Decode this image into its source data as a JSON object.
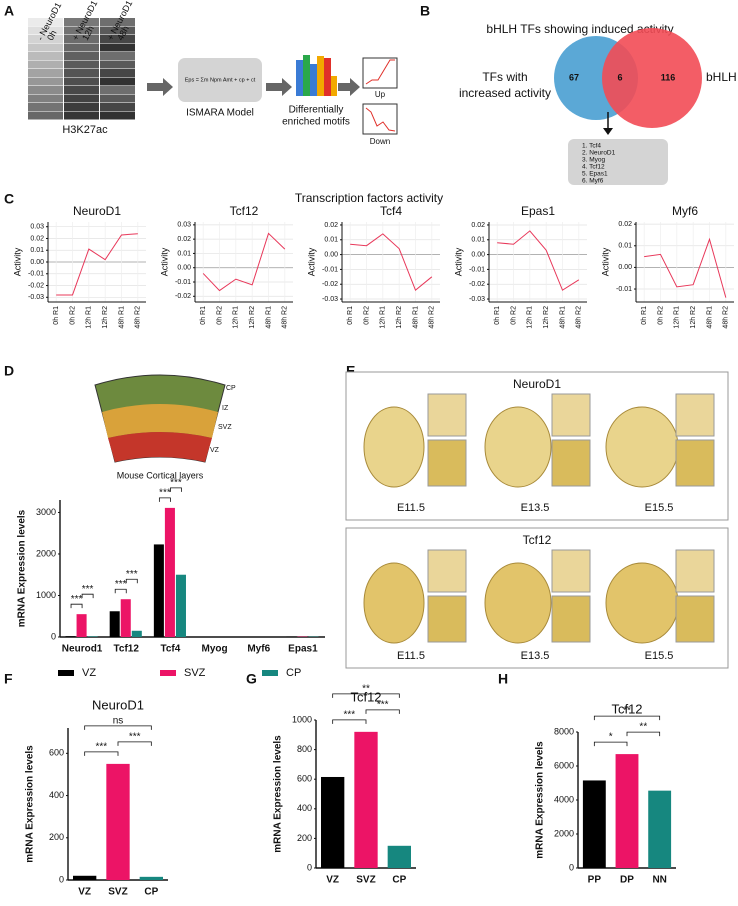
{
  "panel_labels": [
    "A",
    "B",
    "C",
    "D",
    "E",
    "F",
    "G",
    "H"
  ],
  "panel_a": {
    "columns": [
      [
        "- NeuroD1",
        "0h"
      ],
      [
        "+ NeuroD1",
        "12h"
      ],
      [
        "+ NeuroD1",
        "48h"
      ]
    ],
    "histone_mark": "H3K27ac",
    "formula": "Eps = Σm Npm Amt + cp + ct",
    "model": "ISMARA Model",
    "motifs": [
      "Differentially",
      "enriched motifs"
    ],
    "up": "Up",
    "down": "Down"
  },
  "panel_b": {
    "title": "bHLH TFs showing induced activity",
    "left_set": [
      "TFs with",
      "increased activity"
    ],
    "right_set": "bHLH TFs",
    "left_only": "67",
    "overlap": "6",
    "right_only": "116",
    "list": [
      "1. Tcf4",
      "2. NeuroD1",
      "3. Myog",
      "4. Tcf12",
      "5. Epas1",
      "6. Myf6"
    ]
  },
  "panel_c": {
    "title": "Transcription factors activity"
  },
  "panel_d": {
    "layers": [
      "CP",
      "IZ",
      "SVZ",
      "VZ"
    ],
    "caption": "Mouse Cortical layers"
  },
  "panel_e": {
    "groups": [
      {
        "title": "NeuroD1",
        "stages": [
          "E11.5",
          "E13.5",
          "E15.5"
        ]
      },
      {
        "title": "Tcf12",
        "stages": [
          "E11.5",
          "E13.5",
          "E15.5"
        ]
      }
    ]
  },
  "chart_data": [
    {
      "type": "line",
      "title": "NeuroD1",
      "y_label": "Activity",
      "color": "#e8385a",
      "grid": true,
      "categories": [
        "0h R1",
        "0h R2",
        "12h R1",
        "12h R2",
        "48h R1",
        "48h R2"
      ],
      "values": [
        -0.028,
        -0.028,
        0.011,
        0.002,
        0.023,
        0.024
      ],
      "ylim": [
        -0.034,
        0.034
      ],
      "yticks": [
        0.03,
        0.02,
        0.01,
        {
          "value": 0,
          "label": "0.00"
        },
        -0.01,
        -0.02,
        -0.03
      ]
    },
    {
      "type": "line",
      "title": "Tcf12",
      "y_label": "Activity",
      "color": "#e8385a",
      "grid": true,
      "categories": [
        "0h R1",
        "0h R2",
        "12h R1",
        "12h R2",
        "48h R1",
        "48h R2"
      ],
      "values": [
        -0.004,
        -0.016,
        -0.008,
        -0.012,
        0.024,
        0.013
      ],
      "ylim": [
        -0.024,
        0.032
      ],
      "yticks": [
        0.03,
        0.02,
        0.01,
        {
          "value": 0,
          "label": "0.00"
        },
        -0.01,
        -0.02
      ]
    },
    {
      "type": "line",
      "title": "Tcf4",
      "y_label": "Activity",
      "color": "#e8385a",
      "grid": true,
      "categories": [
        "0h R1",
        "0h R2",
        "12h R1",
        "12h R2",
        "48h R1",
        "48h R2"
      ],
      "values": [
        0.007,
        0.006,
        0.014,
        0.004,
        -0.024,
        -0.015
      ],
      "ylim": [
        -0.032,
        0.022
      ],
      "yticks": [
        0.02,
        0.01,
        {
          "value": 0,
          "label": "0.00"
        },
        -0.01,
        -0.02,
        -0.03
      ]
    },
    {
      "type": "line",
      "title": "Epas1",
      "y_label": "Activity",
      "color": "#e8385a",
      "grid": true,
      "categories": [
        "0h R1",
        "0h R2",
        "12h R1",
        "12h R2",
        "48h R1",
        "48h R2"
      ],
      "values": [
        0.008,
        0.007,
        0.016,
        0.003,
        -0.024,
        -0.017
      ],
      "ylim": [
        -0.032,
        0.022
      ],
      "yticks": [
        0.02,
        0.01,
        {
          "value": 0,
          "label": "0.00"
        },
        -0.01,
        -0.02,
        -0.03
      ]
    },
    {
      "type": "line",
      "title": "Myf6",
      "y_label": "Activity",
      "color": "#e8385a",
      "grid": true,
      "categories": [
        "0h R1",
        "0h R2",
        "12h R1",
        "12h R2",
        "48h R1",
        "48h R2"
      ],
      "values": [
        0.005,
        0.006,
        -0.009,
        -0.008,
        0.013,
        -0.014
      ],
      "ylim": [
        -0.016,
        0.021
      ],
      "yticks": [
        0.02,
        0.01,
        {
          "value": 0,
          "label": "0.00"
        },
        -0.01
      ]
    },
    {
      "type": "bar",
      "y_label": "mRNA Expression levels",
      "categories": [
        "Neurod1",
        "Tcf12",
        "Tcf4",
        "Myog",
        "Myf6",
        "Epas1"
      ],
      "series": [
        {
          "name": "VZ",
          "color": "#000000",
          "values": [
            20,
            620,
            2230,
            0,
            0,
            10
          ]
        },
        {
          "name": "SVZ",
          "color": "#ec1466",
          "values": [
            550,
            910,
            3110,
            0,
            0,
            10
          ]
        },
        {
          "name": "CP",
          "color": "#16877f",
          "values": [
            15,
            150,
            1500,
            0,
            0,
            10
          ]
        }
      ],
      "ylim": [
        0,
        3300
      ],
      "yticks": [
        0,
        1000,
        2000,
        3000
      ],
      "comparisons": [
        {
          "label": "***",
          "category": "Neurod1",
          "groups": [
            "VZ",
            "SVZ"
          ]
        },
        {
          "label": "***",
          "category": "Neurod1",
          "groups": [
            "SVZ",
            "CP"
          ]
        },
        {
          "label": "***",
          "category": "Tcf12",
          "groups": [
            "VZ",
            "SVZ"
          ]
        },
        {
          "label": "***",
          "category": "Tcf12",
          "groups": [
            "SVZ",
            "CP"
          ]
        },
        {
          "label": "***",
          "category": "Tcf4",
          "groups": [
            "VZ",
            "SVZ"
          ]
        },
        {
          "label": "***",
          "category": "Tcf4",
          "groups": [
            "SVZ",
            "CP"
          ]
        }
      ]
    },
    {
      "type": "bar",
      "title": "NeuroD1",
      "y_label": "mRNA Expression levels",
      "categories": [
        "VZ",
        "SVZ",
        "CP"
      ],
      "values": [
        20,
        550,
        15
      ],
      "colors": [
        "#000000",
        "#ec1466",
        "#16877f"
      ],
      "ylim": [
        0,
        720
      ],
      "yticks": [
        0,
        200,
        400,
        600
      ],
      "comparisons": [
        {
          "label": "***",
          "groups": [
            "VZ",
            "SVZ"
          ]
        },
        {
          "label": "***",
          "groups": [
            "SVZ",
            "CP"
          ]
        },
        {
          "label": "ns",
          "groups": [
            "VZ",
            "CP"
          ]
        }
      ]
    },
    {
      "type": "bar",
      "title": "Tcf12",
      "y_label": "mRNA Expression levels",
      "categories": [
        "VZ",
        "SVZ",
        "CP"
      ],
      "values": [
        615,
        920,
        150
      ],
      "colors": [
        "#000000",
        "#ec1466",
        "#16877f"
      ],
      "ylim": [
        0,
        1000
      ],
      "yticks": [
        0,
        200,
        400,
        600,
        800,
        1000
      ],
      "comparisons": [
        {
          "label": "***",
          "groups": [
            "VZ",
            "SVZ"
          ]
        },
        {
          "label": "***",
          "groups": [
            "SVZ",
            "CP"
          ]
        },
        {
          "label": "**",
          "groups": [
            "VZ",
            "CP"
          ]
        }
      ]
    },
    {
      "type": "bar",
      "title": "Tcf12",
      "y_label": "mRNA Expression levels",
      "categories": [
        "PP",
        "DP",
        "NN"
      ],
      "values": [
        5150,
        6700,
        4550
      ],
      "colors": [
        "#000000",
        "#ec1466",
        "#16877f"
      ],
      "ylim": [
        0,
        8000
      ],
      "yticks": [
        0,
        2000,
        4000,
        6000,
        8000
      ],
      "comparisons": [
        {
          "label": "*",
          "groups": [
            "PP",
            "DP"
          ]
        },
        {
          "label": "**",
          "groups": [
            "DP",
            "NN"
          ]
        },
        {
          "label": "**",
          "groups": [
            "PP",
            "NN"
          ]
        }
      ]
    }
  ]
}
